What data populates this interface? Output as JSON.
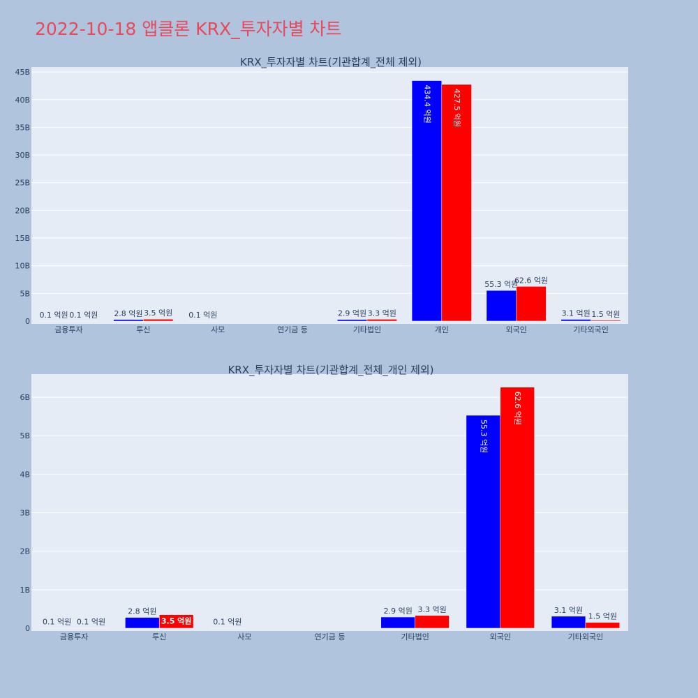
{
  "title": "2022-10-18 앱클론 KRX_투자자별 차트",
  "colors": {
    "buy": "#0000ff",
    "sell": "#ff0000",
    "plot_bg": "#e5ecf6",
    "page_bg": "#b0c4de",
    "title": "#e8485a"
  },
  "chart_data": [
    {
      "type": "bar",
      "title": "KRX_투자자별 차트(기관합계_전체 제외)",
      "categories": [
        "금융투자",
        "투신",
        "사모",
        "연기금 등",
        "기타법인",
        "개인",
        "외국인",
        "기타외국인"
      ],
      "series": [
        {
          "values": [
            10000000,
            280000000,
            10000000,
            0,
            290000000,
            43440000000,
            5530000000,
            310000000
          ],
          "labels": [
            "0.1 억원",
            "2.8 억원",
            "0.1 억원",
            "",
            "2.9 억원",
            "434.4 억원",
            "55.3 억원",
            "3.1 억원"
          ]
        },
        {
          "values": [
            10000000,
            350000000,
            0,
            0,
            330000000,
            42750000000,
            6260000000,
            150000000
          ],
          "labels": [
            "0.1 억원",
            "3.5 억원",
            "",
            "",
            "3.3 억원",
            "427.5 억원",
            "62.6 억원",
            "1.5 억원"
          ]
        }
      ],
      "ylim": [
        0,
        45900000000
      ],
      "yticks": [
        0,
        5000000000,
        10000000000,
        15000000000,
        20000000000,
        25000000000,
        30000000000,
        35000000000,
        40000000000,
        45000000000
      ],
      "yticklabels": [
        "0",
        "5B",
        "10B",
        "15B",
        "20B",
        "25B",
        "30B",
        "35B",
        "40B",
        "45B"
      ],
      "grid": true
    },
    {
      "type": "bar",
      "title": "KRX_투자자별 차트(기관합계_전체_개인 제외)",
      "categories": [
        "금융투자",
        "투신",
        "사모",
        "연기금 등",
        "기타법인",
        "외국인",
        "기타외국인"
      ],
      "series": [
        {
          "values": [
            10000000,
            280000000,
            10000000,
            0,
            290000000,
            5530000000,
            310000000
          ],
          "labels": [
            "0.1 억원",
            "2.8 억원",
            "0.1 억원",
            "",
            "2.9 억원",
            "55.3 억원",
            "3.1 억원"
          ]
        },
        {
          "values": [
            10000000,
            350000000,
            0,
            0,
            330000000,
            6260000000,
            150000000
          ],
          "labels": [
            "0.1 억원",
            "3.5 억원",
            "",
            "",
            "3.3 억원",
            "62.6 억원",
            "1.5 억원"
          ]
        }
      ],
      "ylim": [
        0,
        6600000000
      ],
      "yticks": [
        0,
        1000000000,
        2000000000,
        3000000000,
        4000000000,
        5000000000,
        6000000000
      ],
      "yticklabels": [
        "0",
        "1B",
        "2B",
        "3B",
        "4B",
        "5B",
        "6B"
      ],
      "grid": true
    }
  ]
}
